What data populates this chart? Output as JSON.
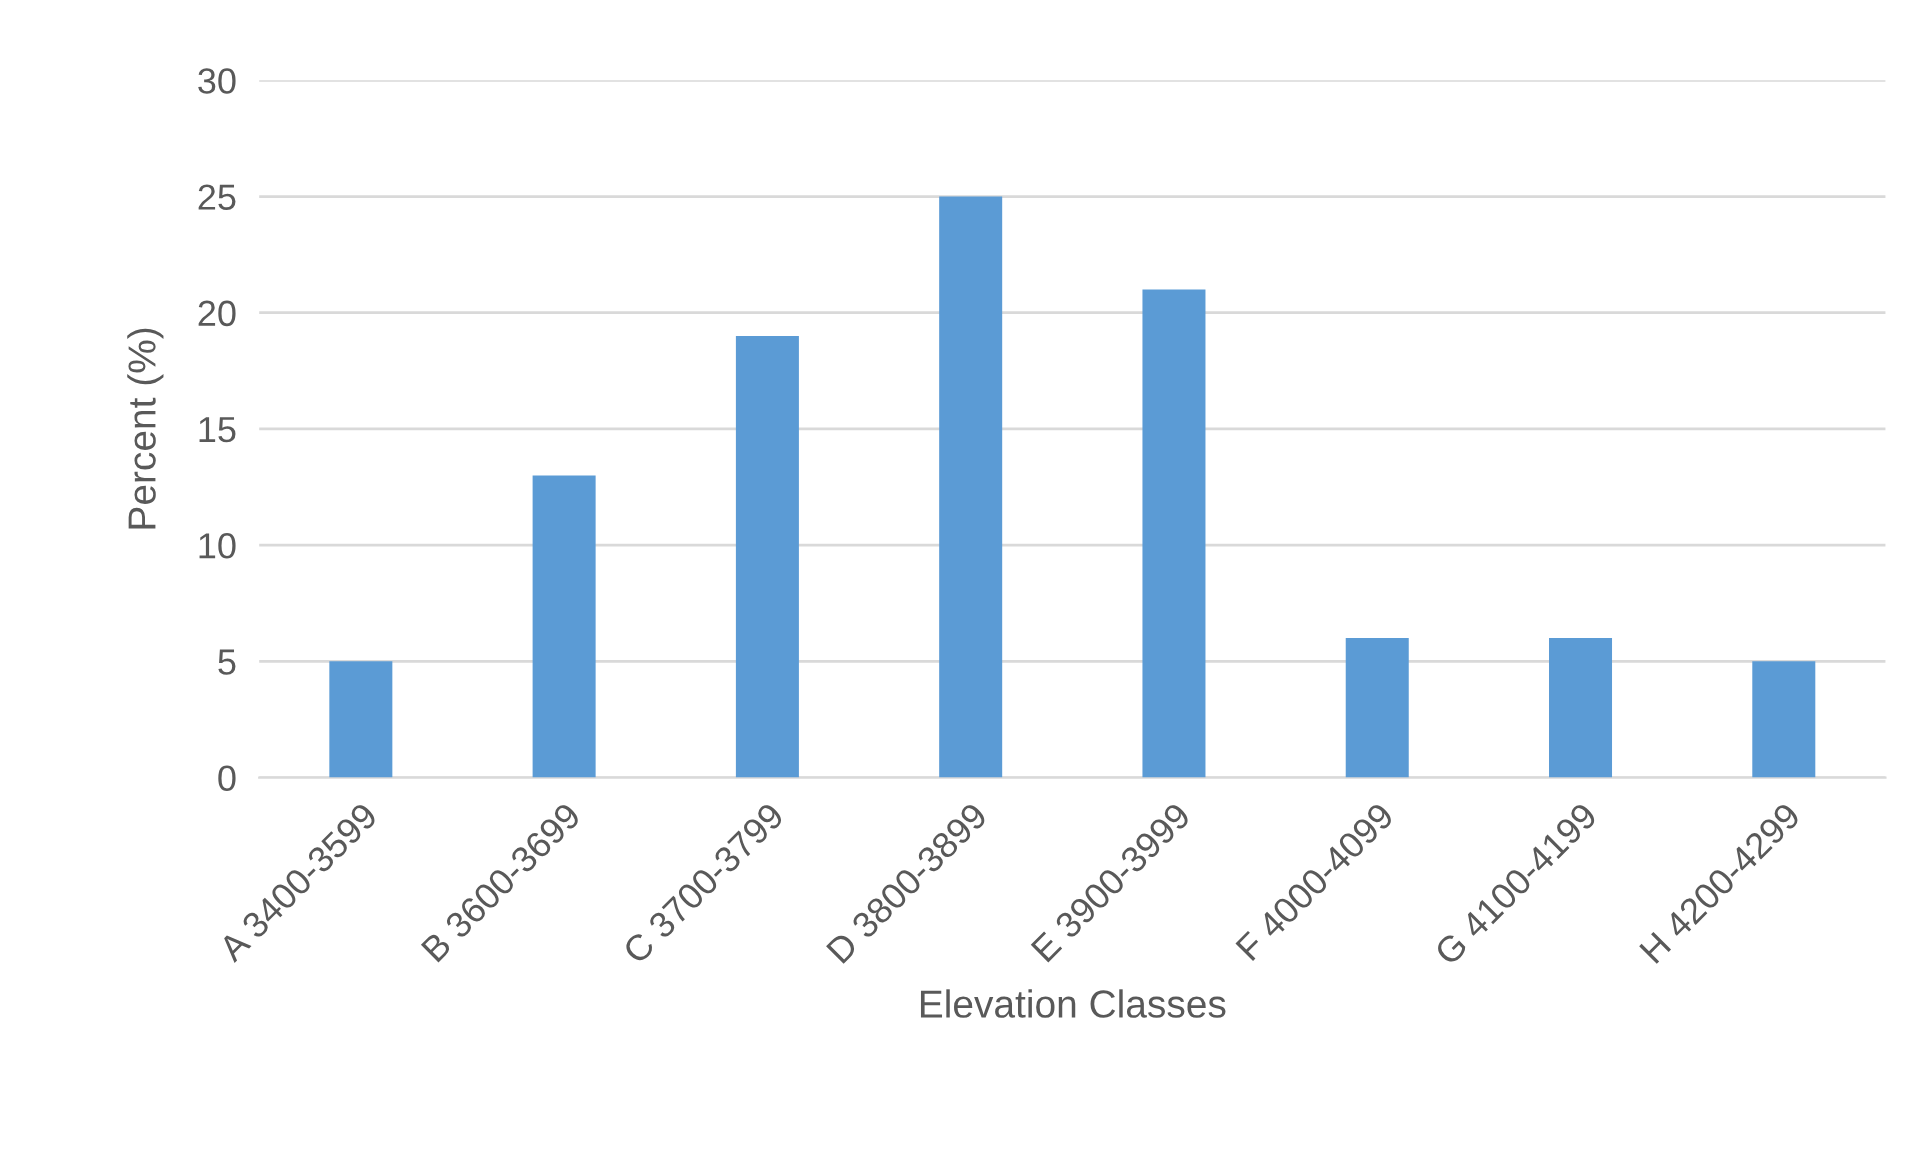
{
  "chart_data": {
    "type": "bar",
    "xlabel": "Elevation Classes",
    "ylabel": "Percent (%)",
    "categories": [
      "A 3400-3599",
      "B 3600-3699",
      "C 3700-3799",
      "D 3800-3899",
      "E 3900-3999",
      "F 4000-4099",
      "G 4100-4199",
      "H 4200-4299"
    ],
    "values": [
      5,
      13,
      19,
      25,
      21,
      6,
      6,
      5
    ],
    "color": "#5b9bd5",
    "ylim": [
      0,
      30
    ],
    "yticks": [
      0,
      5,
      10,
      15,
      20,
      25,
      30
    ],
    "grid": "y",
    "legend": false
  }
}
